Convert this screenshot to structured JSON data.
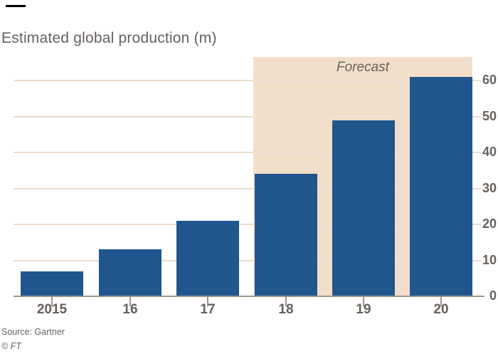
{
  "chart_data": {
    "type": "bar",
    "title": "Estimated global production (m)",
    "categories": [
      "2015",
      "16",
      "17",
      "18",
      "19",
      "20"
    ],
    "values": [
      7,
      13,
      21,
      34,
      49,
      61
    ],
    "yticks": [
      0,
      10,
      20,
      30,
      40,
      50,
      60
    ],
    "ylim": [
      0,
      66.5
    ],
    "grid": true,
    "legend": "none",
    "y_axis_side": "right",
    "forecast": {
      "label": "Forecast",
      "categories": [
        "18",
        "19",
        "20"
      ]
    },
    "source": "Source: Gartner",
    "credit": "© FT",
    "colors": {
      "bar": "#20568D",
      "forecast_band": "#F2DFCB",
      "gridline": "#EBDCCA",
      "gridline_on_band": "#EDE3D8",
      "axis": "#9C948B",
      "text": "#66605C",
      "top_rule": "#000000"
    }
  }
}
